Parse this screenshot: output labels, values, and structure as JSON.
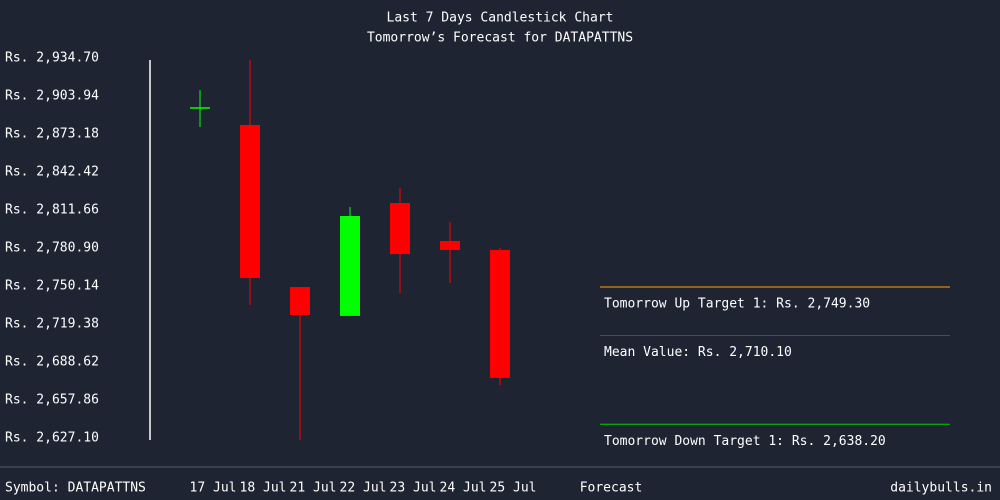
{
  "chart_data": {
    "type": "candlestick",
    "title": "Last 7 Days Candlestick Chart",
    "subtitle": "Tomorrow’s Forecast for DATAPATTNS",
    "categories": [
      "17 Jul",
      "18 Jul",
      "21 Jul",
      "22 Jul",
      "23 Jul",
      "24 Jul",
      "25 Jul"
    ],
    "open": [
      2894.2,
      2880.5,
      2749.3,
      2725.9,
      2817.3,
      2786.6,
      2779.3
    ],
    "high": [
      2908.8,
      2933.1,
      2749.3,
      2814.1,
      2829.5,
      2802.0,
      2780.9
    ],
    "low": [
      2878.8,
      2734.8,
      2625.5,
      2725.9,
      2744.5,
      2752.6,
      2670.0
    ],
    "close": [
      2894.2,
      2756.6,
      2726.7,
      2806.8,
      2776.0,
      2779.3,
      2675.7
    ],
    "up_color": "#00ff00",
    "down_color": "#ff0000",
    "ylim": [
      2627.1,
      2934.7
    ],
    "yticks": [
      {
        "value": 2934.7,
        "label": "Rs. 2,934.70"
      },
      {
        "value": 2903.94,
        "label": "Rs. 2,903.94"
      },
      {
        "value": 2873.18,
        "label": "Rs. 2,873.18"
      },
      {
        "value": 2842.42,
        "label": "Rs. 2,842.42"
      },
      {
        "value": 2811.66,
        "label": "Rs. 2,811.66"
      },
      {
        "value": 2780.9,
        "label": "Rs. 2,780.90"
      },
      {
        "value": 2750.14,
        "label": "Rs. 2,750.14"
      },
      {
        "value": 2719.38,
        "label": "Rs. 2,719.38"
      },
      {
        "value": 2688.62,
        "label": "Rs. 2,688.62"
      },
      {
        "value": 2657.86,
        "label": "Rs. 2,657.86"
      },
      {
        "value": 2627.1,
        "label": "Rs. 2,627.10"
      }
    ],
    "forecast": [
      {
        "label": "Tomorrow Up Target 1: Rs. 2,749.30",
        "value": 2749.3,
        "color": "#ffa500"
      },
      {
        "label": "Mean Value: Rs. 2,710.10",
        "value": 2710.1,
        "color": "#ff0000"
      },
      {
        "label": "Tomorrow Down Target 1: Rs. 2,638.20",
        "value": 2638.2,
        "color": "#00cc00"
      }
    ],
    "symbol_label": "Symbol: DATAPATTNS",
    "forecast_label": "Forecast",
    "source": "dailybulls.in"
  }
}
